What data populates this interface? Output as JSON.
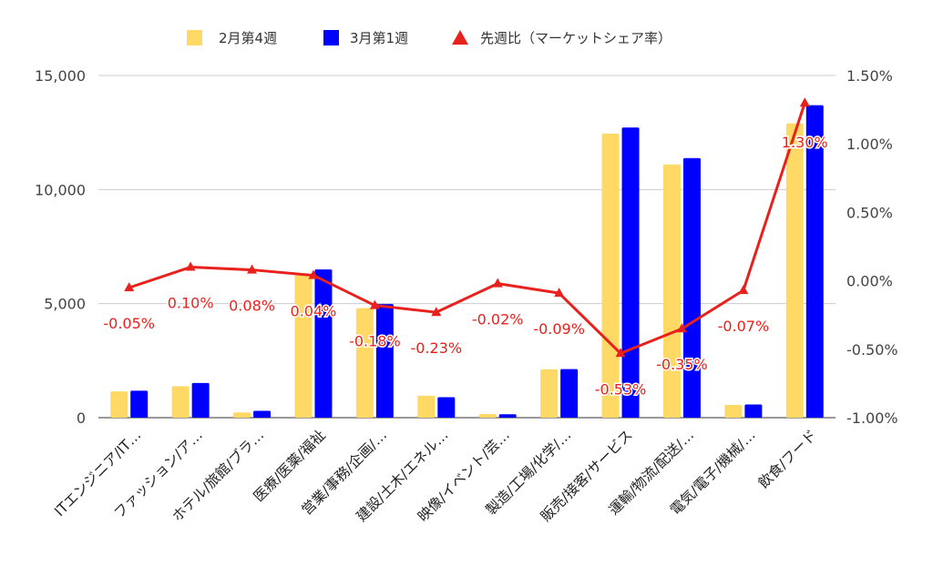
{
  "chart_data": {
    "type": "bar",
    "categories": [
      "ITエンジニア/IT…",
      "ファッション/ア…",
      "ホテル/旅館/ブラ…",
      "医療/医薬/福祉",
      "営業/事務/企画/…",
      "建設/土木/エネル…",
      "映像/イベント/芸…",
      "製造/工場/化学/…",
      "販売/接客/サービス",
      "運輸/物流/配送/…",
      "電気/電子/機械/…",
      "飲食/フード"
    ],
    "series": [
      {
        "name": "2月第4週",
        "type": "bar",
        "axis": "left",
        "color": "#ffd966",
        "values": [
          1150,
          1380,
          230,
          6300,
          4800,
          960,
          160,
          2120,
          12450,
          11100,
          560,
          12900
        ]
      },
      {
        "name": "3月第1週",
        "type": "bar",
        "axis": "left",
        "color": "#0000ff",
        "values": [
          1180,
          1520,
          300,
          6500,
          4980,
          900,
          150,
          2130,
          12720,
          11380,
          580,
          13700
        ]
      },
      {
        "name": "先週比（マーケットシェア率）",
        "type": "line",
        "axis": "right",
        "color": "#e8211d",
        "marker": "triangle",
        "values": [
          -0.05,
          0.1,
          0.08,
          0.04,
          -0.18,
          -0.23,
          -0.02,
          -0.09,
          -0.53,
          -0.35,
          -0.07,
          1.3
        ],
        "labels": [
          "-0.05%",
          "0.10%",
          "0.08%",
          "0.04%",
          "-0.18%",
          "-0.23%",
          "-0.02%",
          "-0.09%",
          "-0.53%",
          "-0.35%",
          "-0.07%",
          "1.30%"
        ]
      }
    ],
    "y_left": {
      "min": 0,
      "max": 15000,
      "ticks": [
        "0",
        "5,000",
        "10,000",
        "15,000"
      ]
    },
    "y_right": {
      "min": -1.0,
      "max": 1.5,
      "ticks": [
        "-1.00%",
        "-0.50%",
        "0.00%",
        "0.50%",
        "1.00%",
        "1.50%"
      ]
    },
    "legend_position": "top",
    "grid": true
  }
}
